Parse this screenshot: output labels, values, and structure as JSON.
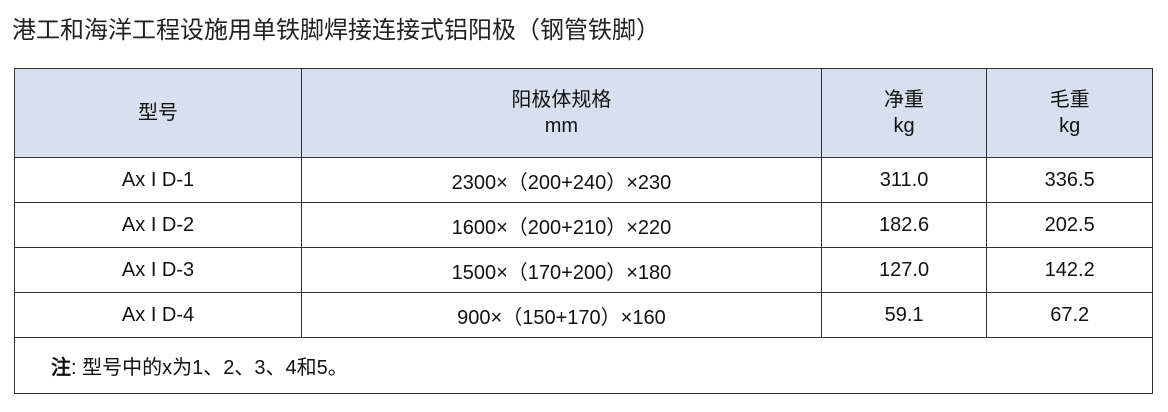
{
  "title": "港工和海洋工程设施用单铁脚焊接连接式铝阳极（钢管铁脚）",
  "table": {
    "headers": [
      {
        "line1": "型号",
        "line2": ""
      },
      {
        "line1": "阳极体规格",
        "line2": "mm"
      },
      {
        "line1": "净重",
        "line2": "kg"
      },
      {
        "line1": "毛重",
        "line2": "kg"
      }
    ],
    "rows": [
      [
        "Ax I D-1",
        "2300×（200+240）×230",
        "311.0",
        "336.5"
      ],
      [
        "Ax I D-2",
        "1600×（200+210）×220",
        "182.6",
        "202.5"
      ],
      [
        "Ax I D-3",
        "1500×（170+200）×180",
        "127.0",
        "142.2"
      ],
      [
        "Ax I D-4",
        "900×（150+170）×160",
        "59.1",
        "67.2"
      ]
    ],
    "note_label": "注",
    "note_text": ": 型号中的x为1、2、3、4和5。"
  },
  "colors": {
    "header_bg": "#dadff0",
    "border": "#333333"
  }
}
